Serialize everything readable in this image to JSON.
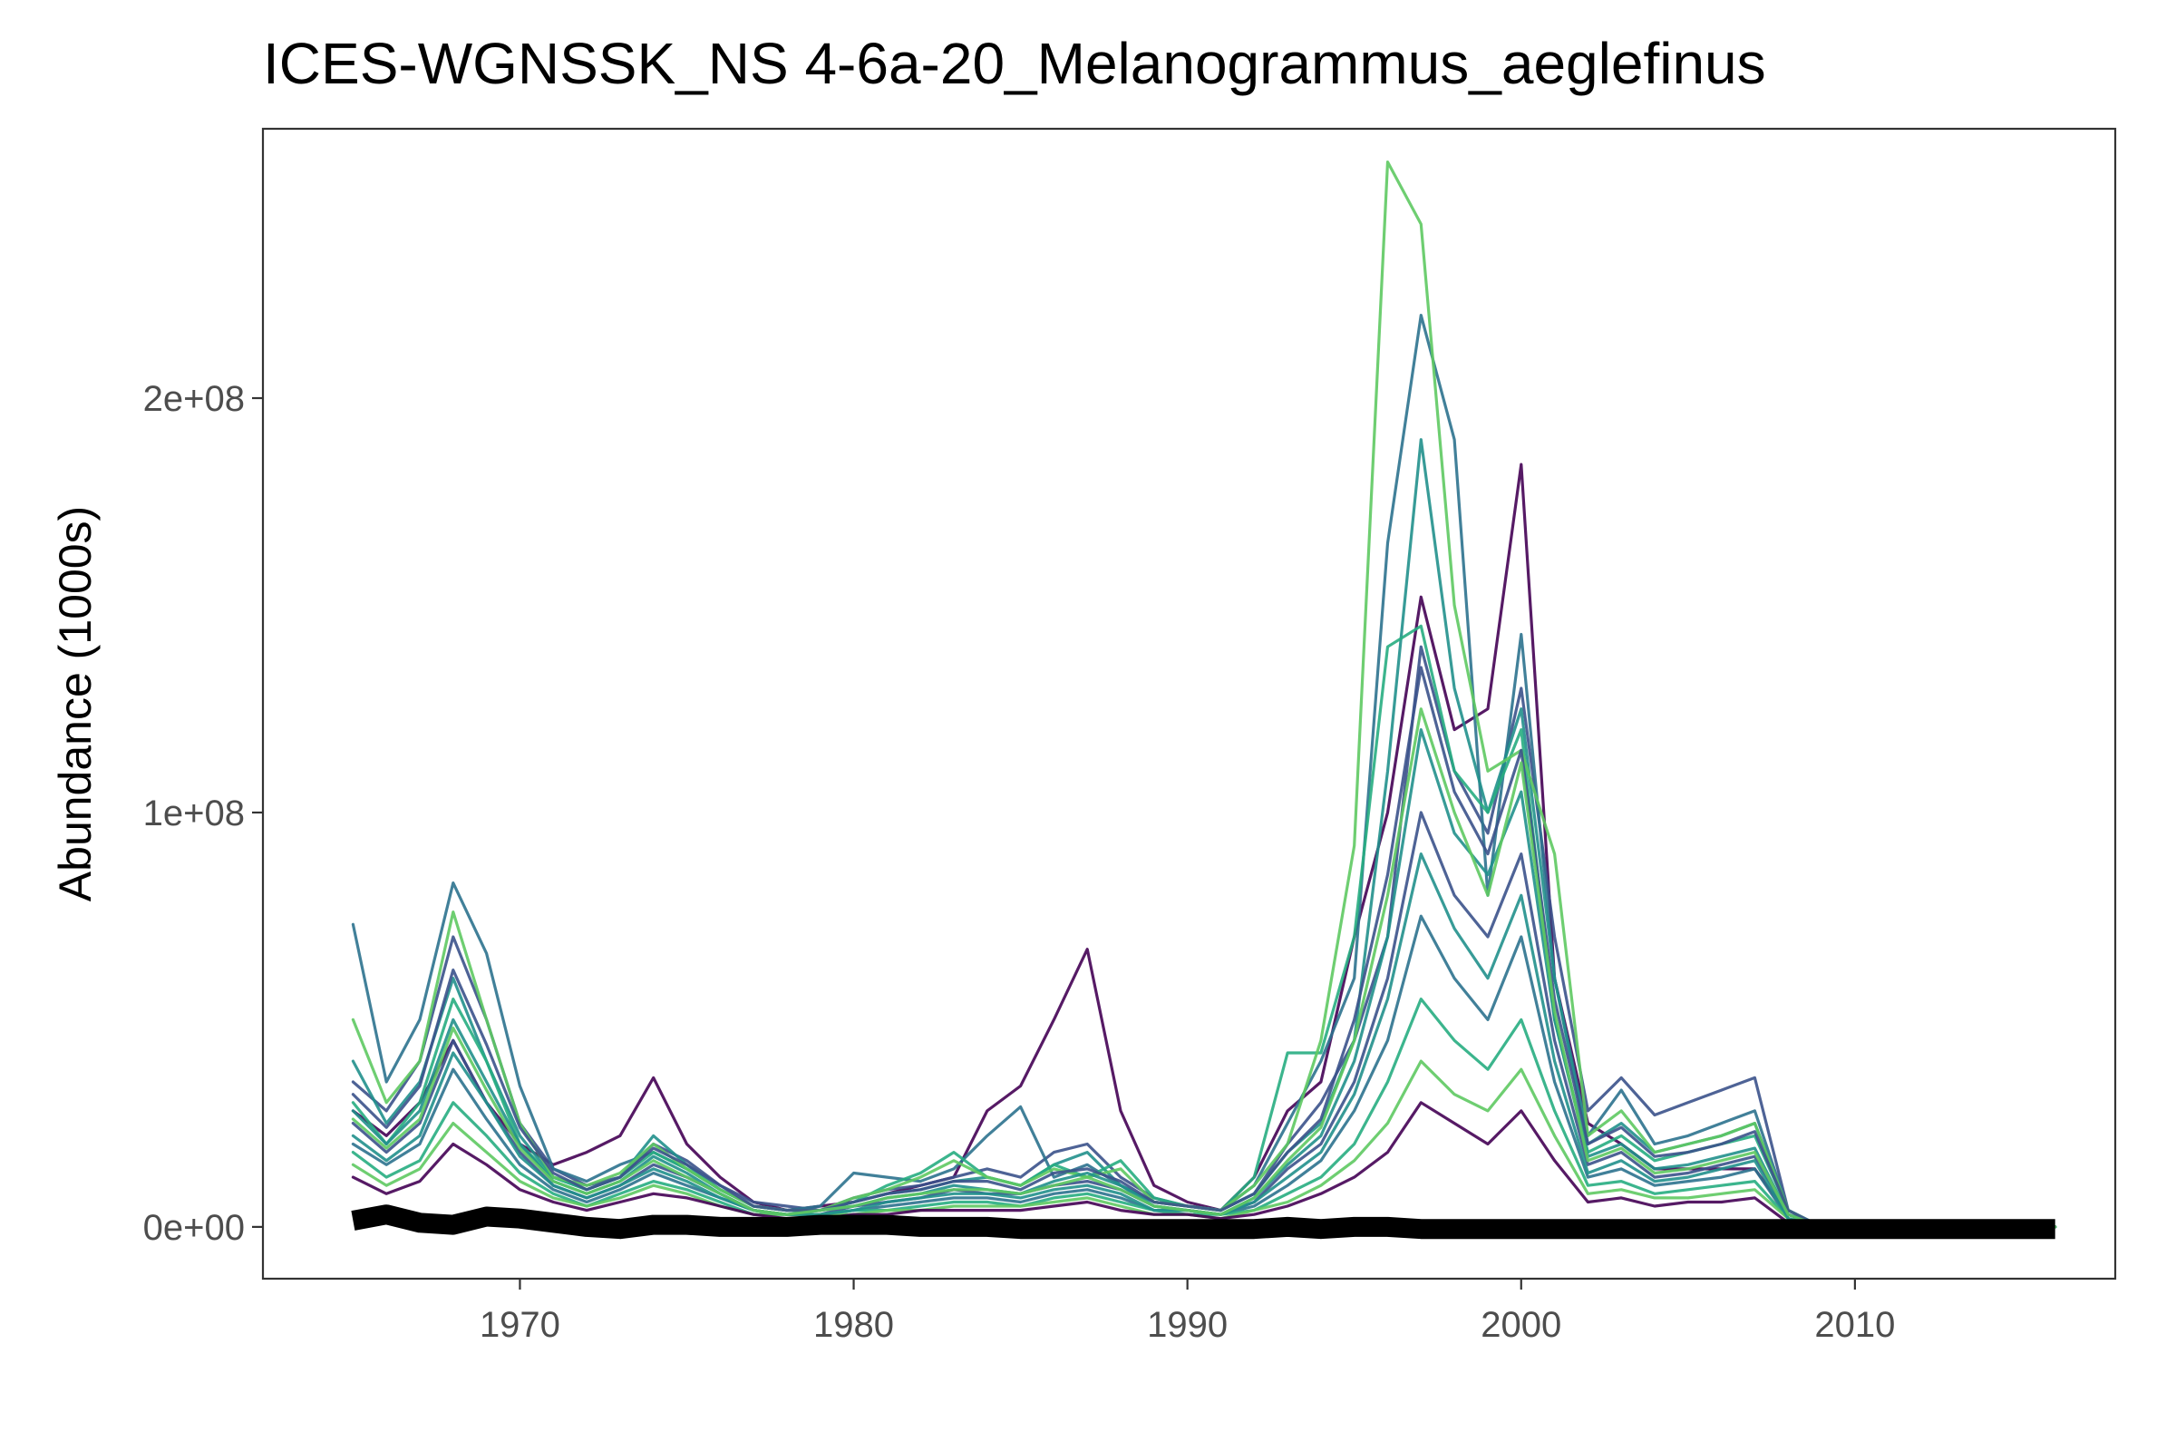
{
  "chart_data": {
    "type": "line",
    "title": "ICES-WGNSSK_NS  4-6a-20_Melanogrammus_aeglefinus",
    "xlabel": "",
    "ylabel": "Abundance (1000s)",
    "xlim": [
      1962.3,
      2017.8
    ],
    "ylim": [
      -12500000,
      265000000
    ],
    "x_ticks": [
      1970,
      1980,
      1990,
      2000,
      2010
    ],
    "x_tick_labels": [
      "1970",
      "1980",
      "1990",
      "2000",
      "2010"
    ],
    "y_ticks": [
      0,
      100000000,
      200000000
    ],
    "y_tick_labels": [
      "0e+00",
      "1e+08",
      "2e+08"
    ],
    "grid": false,
    "legend": "none",
    "colors": {
      "baseline": "#000000",
      "palette": [
        "#440154",
        "#3b528b",
        "#2c728e",
        "#21908c",
        "#27ad81",
        "#5ec962"
      ]
    },
    "x": [
      1965,
      1966,
      1967,
      1968,
      1969,
      1970,
      1971,
      1972,
      1973,
      1974,
      1975,
      1976,
      1977,
      1978,
      1979,
      1980,
      1981,
      1982,
      1983,
      1984,
      1985,
      1986,
      1987,
      1988,
      1989,
      1990,
      1991,
      1992,
      1993,
      1994,
      1995,
      1996,
      1997,
      1998,
      1999,
      2000,
      2001,
      2002,
      2003,
      2004,
      2005,
      2006,
      2007,
      2008,
      2009,
      2010,
      2011,
      2012,
      2013,
      2014,
      2015,
      2016
    ],
    "series": [
      {
        "color": "#440154",
        "values": [
          28000000,
          22000000,
          30000000,
          45000000,
          30000000,
          20000000,
          15000000,
          18000000,
          22000000,
          36000000,
          20000000,
          12000000,
          6000000,
          4000000,
          5000000,
          6000000,
          8000000,
          10000000,
          12000000,
          28000000,
          34000000,
          50000000,
          67000000,
          28000000,
          10000000,
          6000000,
          4000000,
          12000000,
          28000000,
          35000000,
          70000000,
          100000000,
          152000000,
          120000000,
          125000000,
          184000000,
          60000000,
          25000000,
          20000000,
          14000000,
          14000000,
          14000000,
          14000000,
          3000000,
          0,
          0,
          0,
          0,
          0,
          0,
          0,
          0
        ]
      },
      {
        "color": "#3b528b",
        "values": [
          35000000,
          28000000,
          40000000,
          70000000,
          50000000,
          25000000,
          14000000,
          10000000,
          12000000,
          20000000,
          16000000,
          10000000,
          6000000,
          5000000,
          4000000,
          7000000,
          9000000,
          10000000,
          12000000,
          14000000,
          12000000,
          18000000,
          20000000,
          12000000,
          7000000,
          5000000,
          4000000,
          8000000,
          20000000,
          30000000,
          45000000,
          70000000,
          140000000,
          110000000,
          95000000,
          130000000,
          70000000,
          28000000,
          36000000,
          27000000,
          30000000,
          33000000,
          36000000,
          4000000,
          0,
          0,
          0,
          0,
          0,
          0,
          0,
          0
        ]
      },
      {
        "color": "#2c728e",
        "values": [
          73000000,
          35000000,
          50000000,
          83000000,
          66000000,
          34000000,
          14000000,
          11000000,
          15000000,
          18000000,
          14000000,
          9000000,
          5000000,
          4000000,
          5000000,
          13000000,
          12000000,
          11000000,
          14000000,
          22000000,
          29000000,
          12000000,
          15000000,
          10000000,
          6000000,
          5000000,
          4000000,
          10000000,
          25000000,
          40000000,
          60000000,
          165000000,
          220000000,
          190000000,
          80000000,
          143000000,
          60000000,
          22000000,
          33000000,
          20000000,
          22000000,
          25000000,
          28000000,
          4000000,
          0,
          0,
          0,
          0,
          0,
          0,
          0,
          0
        ]
      },
      {
        "color": "#21908c",
        "values": [
          40000000,
          25000000,
          35000000,
          60000000,
          40000000,
          22000000,
          12000000,
          9000000,
          12000000,
          22000000,
          15000000,
          9000000,
          5000000,
          4000000,
          4000000,
          6000000,
          8000000,
          9000000,
          11000000,
          12000000,
          10000000,
          15000000,
          18000000,
          10000000,
          6000000,
          5000000,
          4000000,
          8000000,
          18000000,
          25000000,
          45000000,
          110000000,
          190000000,
          130000000,
          100000000,
          125000000,
          60000000,
          20000000,
          25000000,
          18000000,
          20000000,
          22000000,
          25000000,
          4000000,
          0,
          0,
          0,
          0,
          0,
          0,
          0,
          0
        ]
      },
      {
        "color": "#27ad81",
        "values": [
          30000000,
          20000000,
          30000000,
          55000000,
          40000000,
          20000000,
          12000000,
          9000000,
          12000000,
          18000000,
          14000000,
          9000000,
          5000000,
          4000000,
          4000000,
          6000000,
          10000000,
          13000000,
          18000000,
          12000000,
          10000000,
          15000000,
          12000000,
          16000000,
          7000000,
          5000000,
          4000000,
          12000000,
          42000000,
          42000000,
          70000000,
          140000000,
          145000000,
          110000000,
          100000000,
          120000000,
          50000000,
          18000000,
          22000000,
          16000000,
          18000000,
          20000000,
          22000000,
          4000000,
          0,
          0,
          0,
          0,
          0,
          0,
          0,
          0
        ]
      },
      {
        "color": "#5ec962",
        "values": [
          50000000,
          30000000,
          40000000,
          76000000,
          50000000,
          25000000,
          12000000,
          10000000,
          13000000,
          20000000,
          14000000,
          9000000,
          5000000,
          4000000,
          4000000,
          7000000,
          9000000,
          12000000,
          16000000,
          12000000,
          10000000,
          14000000,
          12000000,
          14000000,
          6000000,
          5000000,
          4000000,
          10000000,
          20000000,
          45000000,
          92000000,
          257000000,
          242000000,
          150000000,
          110000000,
          115000000,
          90000000,
          22000000,
          28000000,
          18000000,
          20000000,
          22000000,
          25000000,
          4000000,
          0,
          0,
          0,
          0,
          0,
          0,
          0,
          0
        ]
      },
      {
        "color": "#3b528b",
        "values": [
          25000000,
          18000000,
          25000000,
          45000000,
          30000000,
          18000000,
          10000000,
          7000000,
          10000000,
          15000000,
          12000000,
          8000000,
          4000000,
          3000000,
          3000000,
          5000000,
          6000000,
          7000000,
          9000000,
          8000000,
          8000000,
          10000000,
          11000000,
          9000000,
          5000000,
          4000000,
          3000000,
          6000000,
          14000000,
          20000000,
          35000000,
          60000000,
          100000000,
          80000000,
          70000000,
          90000000,
          45000000,
          15000000,
          18000000,
          12000000,
          13000000,
          15000000,
          17000000,
          3000000,
          0,
          0,
          0,
          0,
          0,
          0,
          0,
          0
        ]
      },
      {
        "color": "#2c728e",
        "values": [
          20000000,
          15000000,
          20000000,
          38000000,
          26000000,
          15000000,
          9000000,
          6000000,
          9000000,
          13000000,
          10000000,
          7000000,
          4000000,
          3000000,
          3000000,
          4000000,
          5000000,
          6000000,
          7000000,
          7000000,
          6000000,
          8000000,
          9000000,
          7000000,
          4000000,
          4000000,
          3000000,
          5000000,
          10000000,
          16000000,
          28000000,
          45000000,
          75000000,
          60000000,
          50000000,
          70000000,
          35000000,
          12000000,
          14000000,
          10000000,
          11000000,
          12000000,
          14000000,
          2000000,
          0,
          0,
          0,
          0,
          0,
          0,
          0,
          0
        ]
      },
      {
        "color": "#21908c",
        "values": [
          28000000,
          20000000,
          28000000,
          50000000,
          35000000,
          20000000,
          11000000,
          8000000,
          11000000,
          17000000,
          13000000,
          8000000,
          4000000,
          3000000,
          4000000,
          5000000,
          7000000,
          8000000,
          10000000,
          9000000,
          8000000,
          11000000,
          13000000,
          10000000,
          5000000,
          4000000,
          3000000,
          7000000,
          15000000,
          22000000,
          40000000,
          70000000,
          120000000,
          95000000,
          85000000,
          105000000,
          50000000,
          17000000,
          20000000,
          14000000,
          15000000,
          17000000,
          19000000,
          3000000,
          0,
          0,
          0,
          0,
          0,
          0,
          0,
          0
        ]
      },
      {
        "color": "#27ad81",
        "values": [
          18000000,
          12000000,
          16000000,
          30000000,
          22000000,
          13000000,
          8000000,
          5000000,
          8000000,
          11000000,
          9000000,
          6000000,
          3000000,
          3000000,
          3000000,
          4000000,
          4000000,
          5000000,
          6000000,
          6000000,
          5000000,
          7000000,
          8000000,
          6000000,
          4000000,
          3000000,
          3000000,
          4000000,
          8000000,
          12000000,
          20000000,
          35000000,
          55000000,
          45000000,
          38000000,
          50000000,
          28000000,
          10000000,
          11000000,
          8000000,
          9000000,
          10000000,
          11000000,
          2000000,
          0,
          0,
          0,
          0,
          0,
          0,
          0,
          0
        ]
      },
      {
        "color": "#5ec962",
        "values": [
          15000000,
          10000000,
          14000000,
          25000000,
          18000000,
          11000000,
          7000000,
          5000000,
          7000000,
          10000000,
          8000000,
          5000000,
          3000000,
          3000000,
          3000000,
          3000000,
          4000000,
          4000000,
          5000000,
          5000000,
          5000000,
          6000000,
          7000000,
          5000000,
          3000000,
          3000000,
          2000000,
          4000000,
          6000000,
          10000000,
          16000000,
          25000000,
          40000000,
          32000000,
          28000000,
          38000000,
          22000000,
          8000000,
          9000000,
          7000000,
          7000000,
          8000000,
          9000000,
          2000000,
          0,
          0,
          0,
          0,
          0,
          0,
          0,
          0
        ]
      },
      {
        "color": "#440154",
        "values": [
          12000000,
          8000000,
          11000000,
          20000000,
          15000000,
          9000000,
          6000000,
          4000000,
          6000000,
          8000000,
          7000000,
          5000000,
          3000000,
          2000000,
          2000000,
          3000000,
          3000000,
          4000000,
          4000000,
          4000000,
          4000000,
          5000000,
          6000000,
          4000000,
          3000000,
          3000000,
          2000000,
          3000000,
          5000000,
          8000000,
          12000000,
          18000000,
          30000000,
          25000000,
          20000000,
          28000000,
          16000000,
          6000000,
          7000000,
          5000000,
          6000000,
          6000000,
          7000000,
          1000000,
          0,
          0,
          0,
          0,
          0,
          0,
          0,
          0
        ]
      },
      {
        "color": "#3b528b",
        "values": [
          32000000,
          24000000,
          34000000,
          62000000,
          44000000,
          24000000,
          13000000,
          9000000,
          12000000,
          19000000,
          15000000,
          10000000,
          5000000,
          4000000,
          4000000,
          6000000,
          8000000,
          9000000,
          11000000,
          11000000,
          9000000,
          13000000,
          14000000,
          11000000,
          6000000,
          5000000,
          4000000,
          8000000,
          18000000,
          26000000,
          50000000,
          85000000,
          135000000,
          105000000,
          90000000,
          115000000,
          55000000,
          20000000,
          24000000,
          17000000,
          18000000,
          20000000,
          23000000,
          4000000,
          0,
          0,
          0,
          0,
          0,
          0,
          0,
          0
        ]
      },
      {
        "color": "#21908c",
        "values": [
          22000000,
          16000000,
          22000000,
          42000000,
          30000000,
          17000000,
          10000000,
          7000000,
          10000000,
          14000000,
          11000000,
          7000000,
          4000000,
          3000000,
          3000000,
          4000000,
          6000000,
          7000000,
          8000000,
          8000000,
          7000000,
          9000000,
          10000000,
          8000000,
          4000000,
          4000000,
          3000000,
          6000000,
          12000000,
          18000000,
          32000000,
          55000000,
          90000000,
          72000000,
          60000000,
          80000000,
          40000000,
          13000000,
          16000000,
          11000000,
          12000000,
          14000000,
          16000000,
          2000000,
          0,
          0,
          0,
          0,
          0,
          0,
          0,
          0
        ]
      },
      {
        "color": "#5ec962",
        "values": [
          26000000,
          19000000,
          26000000,
          48000000,
          33000000,
          19000000,
          11000000,
          8000000,
          11000000,
          16000000,
          12000000,
          8000000,
          4000000,
          3000000,
          4000000,
          5000000,
          7000000,
          8000000,
          9000000,
          9000000,
          8000000,
          10000000,
          12000000,
          9000000,
          5000000,
          4000000,
          3000000,
          7000000,
          16000000,
          24000000,
          45000000,
          80000000,
          125000000,
          100000000,
          80000000,
          112000000,
          52000000,
          16000000,
          19000000,
          13000000,
          14000000,
          16000000,
          18000000,
          3000000,
          0,
          0,
          0,
          0,
          0,
          0,
          0,
          0
        ]
      }
    ],
    "baseline": {
      "color": "#000000",
      "values": [
        1500000,
        3000000,
        1000000,
        500000,
        2500000,
        2000000,
        1000000,
        0,
        -500000,
        500000,
        500000,
        0,
        0,
        0,
        500000,
        500000,
        500000,
        0,
        0,
        0,
        -500000,
        -500000,
        -500000,
        -500000,
        -500000,
        -500000,
        -500000,
        -500000,
        0,
        -500000,
        0,
        0,
        -500000,
        -500000,
        -500000,
        -500000,
        -500000,
        -500000,
        -500000,
        -500000,
        -500000,
        -500000,
        -500000,
        -500000,
        -500000,
        -500000,
        -500000,
        -500000,
        -500000,
        -500000,
        -500000,
        -500000
      ]
    }
  }
}
